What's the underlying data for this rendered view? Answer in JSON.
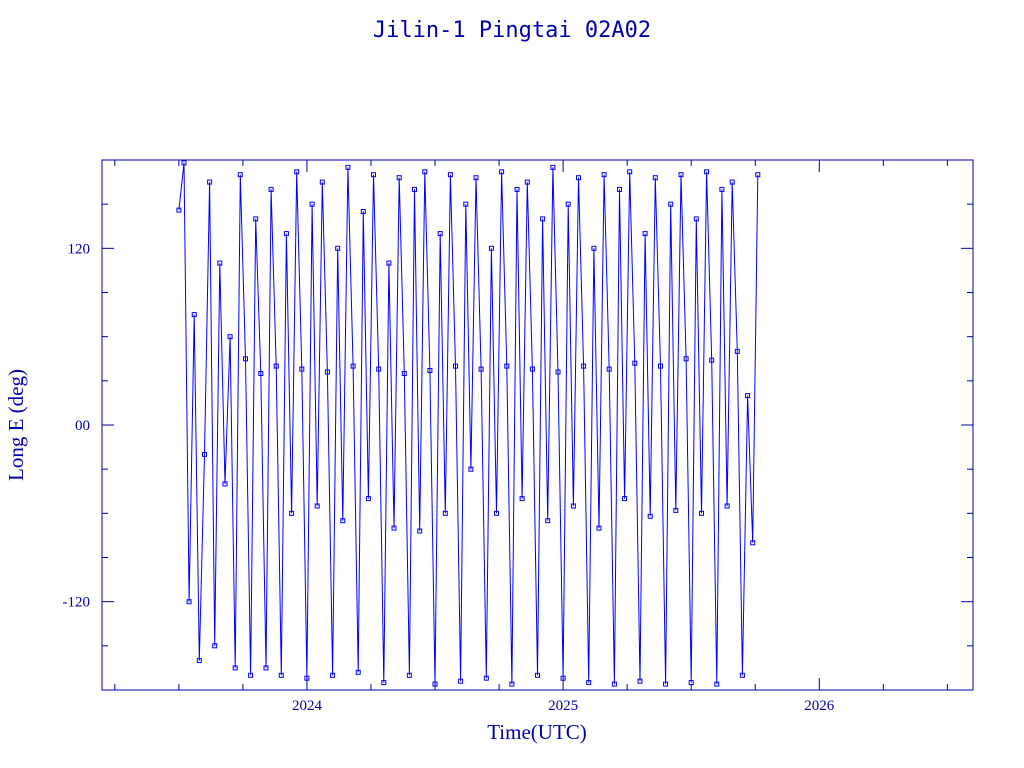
{
  "chart_data": {
    "type": "scatter",
    "title": "Jilin-1 Pingtai 02A02",
    "xlabel": "Time(UTC)",
    "ylabel": "Long E (deg)",
    "xlim": [
      2023.2,
      2026.6
    ],
    "ylim": [
      -180,
      180
    ],
    "xticks": [
      {
        "value": 2024,
        "label": "2024"
      },
      {
        "value": 2025,
        "label": "2025"
      },
      {
        "value": 2026,
        "label": "2026"
      }
    ],
    "yticks": [
      {
        "value": 120,
        "label": "120"
      },
      {
        "value": 0,
        "label": "00"
      },
      {
        "value": -120,
        "label": "-120"
      }
    ],
    "grid": false,
    "colors": {
      "frame": "#0000aa",
      "series": "#0000ff"
    },
    "series": [
      {
        "marker": "square",
        "connected": true,
        "x": [
          2023.5,
          2023.52,
          2023.54,
          2023.56,
          2023.58,
          2023.6,
          2023.62,
          2023.64,
          2023.66,
          2023.68,
          2023.7,
          2023.72,
          2023.74,
          2023.76,
          2023.78,
          2023.8,
          2023.82,
          2023.84,
          2023.86,
          2023.88,
          2023.9,
          2023.92,
          2023.94,
          2023.96,
          2023.98,
          2024.0,
          2024.02,
          2024.04,
          2024.06,
          2024.08,
          2024.1,
          2024.12,
          2024.14,
          2024.16,
          2024.18,
          2024.2,
          2024.22,
          2024.24,
          2024.26,
          2024.28,
          2024.3,
          2024.32,
          2024.34,
          2024.36,
          2024.38,
          2024.4,
          2024.42,
          2024.44,
          2024.46,
          2024.48,
          2024.5,
          2024.52,
          2024.54,
          2024.56,
          2024.58,
          2024.6,
          2024.62,
          2024.64,
          2024.66,
          2024.68,
          2024.7,
          2024.72,
          2024.74,
          2024.76,
          2024.78,
          2024.8,
          2024.82,
          2024.84,
          2024.86,
          2024.88,
          2024.9,
          2024.92,
          2024.94,
          2024.96,
          2024.98,
          2025.0,
          2025.02,
          2025.04,
          2025.06,
          2025.08,
          2025.1,
          2025.12,
          2025.14,
          2025.16,
          2025.18,
          2025.2,
          2025.22,
          2025.24,
          2025.26,
          2025.28,
          2025.3,
          2025.32,
          2025.34,
          2025.36,
          2025.38,
          2025.4,
          2025.42,
          2025.44,
          2025.46,
          2025.48,
          2025.5,
          2025.52,
          2025.54,
          2025.56,
          2025.58,
          2025.6,
          2025.62,
          2025.64,
          2025.66,
          2025.68,
          2025.7,
          2025.72,
          2025.74,
          2025.76
        ],
        "y": [
          146,
          178,
          -120,
          75,
          -160,
          -20,
          165,
          -150,
          110,
          -40,
          60,
          -165,
          170,
          45,
          -170,
          140,
          35,
          -165,
          160,
          40,
          -170,
          130,
          -60,
          172,
          38,
          -172,
          150,
          -55,
          165,
          36,
          -170,
          120,
          -65,
          175,
          40,
          -168,
          145,
          -50,
          170,
          38,
          -175,
          110,
          -70,
          168,
          35,
          -170,
          160,
          -72,
          172,
          37,
          -176,
          130,
          -60,
          170,
          40,
          -174,
          150,
          -30,
          168,
          38,
          -172,
          120,
          -60,
          172,
          40,
          -176,
          160,
          -50,
          165,
          38,
          -170,
          140,
          -65,
          175,
          36,
          -172,
          150,
          -55,
          168,
          40,
          -175,
          120,
          -70,
          170,
          38,
          -176,
          160,
          -50,
          172,
          42,
          -174,
          130,
          -62,
          168,
          40,
          -176,
          150,
          -58,
          170,
          45,
          -175,
          140,
          -60,
          172,
          44,
          -176,
          160,
          -55,
          165,
          50,
          -170,
          20,
          -80,
          170
        ]
      }
    ]
  }
}
